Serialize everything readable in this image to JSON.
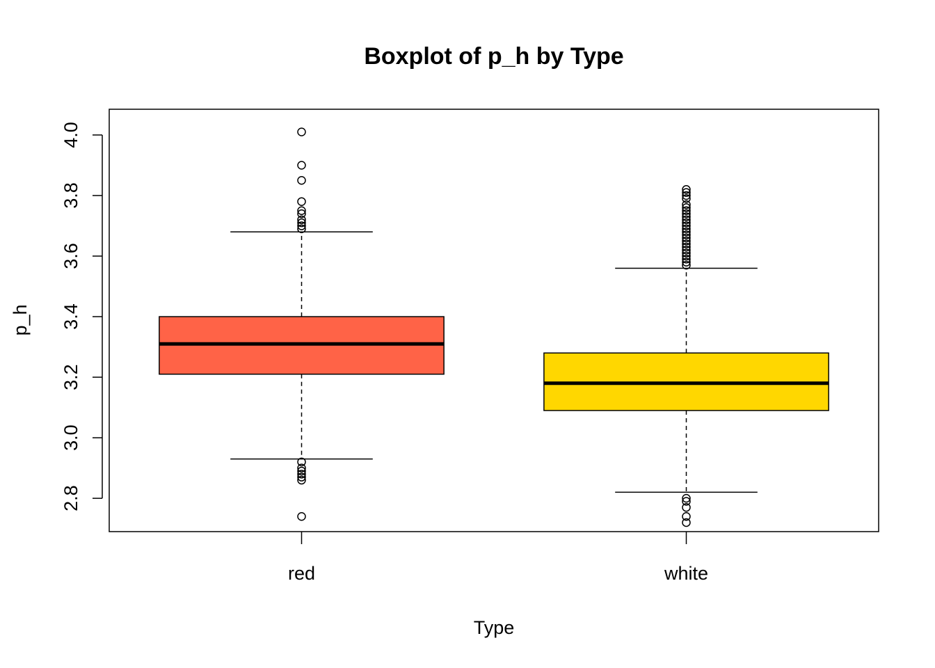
{
  "chart_data": {
    "type": "boxplot",
    "title": "Boxplot of p_h by Type",
    "xlabel": "Type",
    "ylabel": "p_h",
    "ylim": [
      2.69,
      4.085
    ],
    "yticks": [
      "2.8",
      "3.0",
      "3.2",
      "3.4",
      "3.6",
      "3.8",
      "4.0"
    ],
    "categories": [
      "red",
      "white"
    ],
    "grid": false,
    "series": [
      {
        "category": "red",
        "color": "#FF6347",
        "whisker_low": 2.93,
        "q1": 3.21,
        "median": 3.31,
        "q3": 3.4,
        "whisker_high": 3.68,
        "outliers": [
          4.01,
          3.9,
          3.85,
          3.78,
          3.75,
          3.74,
          3.72,
          3.71,
          3.7,
          3.69,
          2.92,
          2.9,
          2.89,
          2.88,
          2.87,
          2.86,
          2.74
        ]
      },
      {
        "category": "white",
        "color": "#FFD700",
        "whisker_low": 2.82,
        "q1": 3.09,
        "median": 3.18,
        "q3": 3.28,
        "whisker_high": 3.56,
        "outliers": [
          3.82,
          3.81,
          3.8,
          3.79,
          3.77,
          3.76,
          3.75,
          3.74,
          3.73,
          3.72,
          3.71,
          3.7,
          3.69,
          3.68,
          3.67,
          3.66,
          3.65,
          3.64,
          3.63,
          3.62,
          3.61,
          3.6,
          3.59,
          3.58,
          3.57,
          2.8,
          2.79,
          2.77,
          2.74,
          2.72
        ]
      }
    ]
  }
}
